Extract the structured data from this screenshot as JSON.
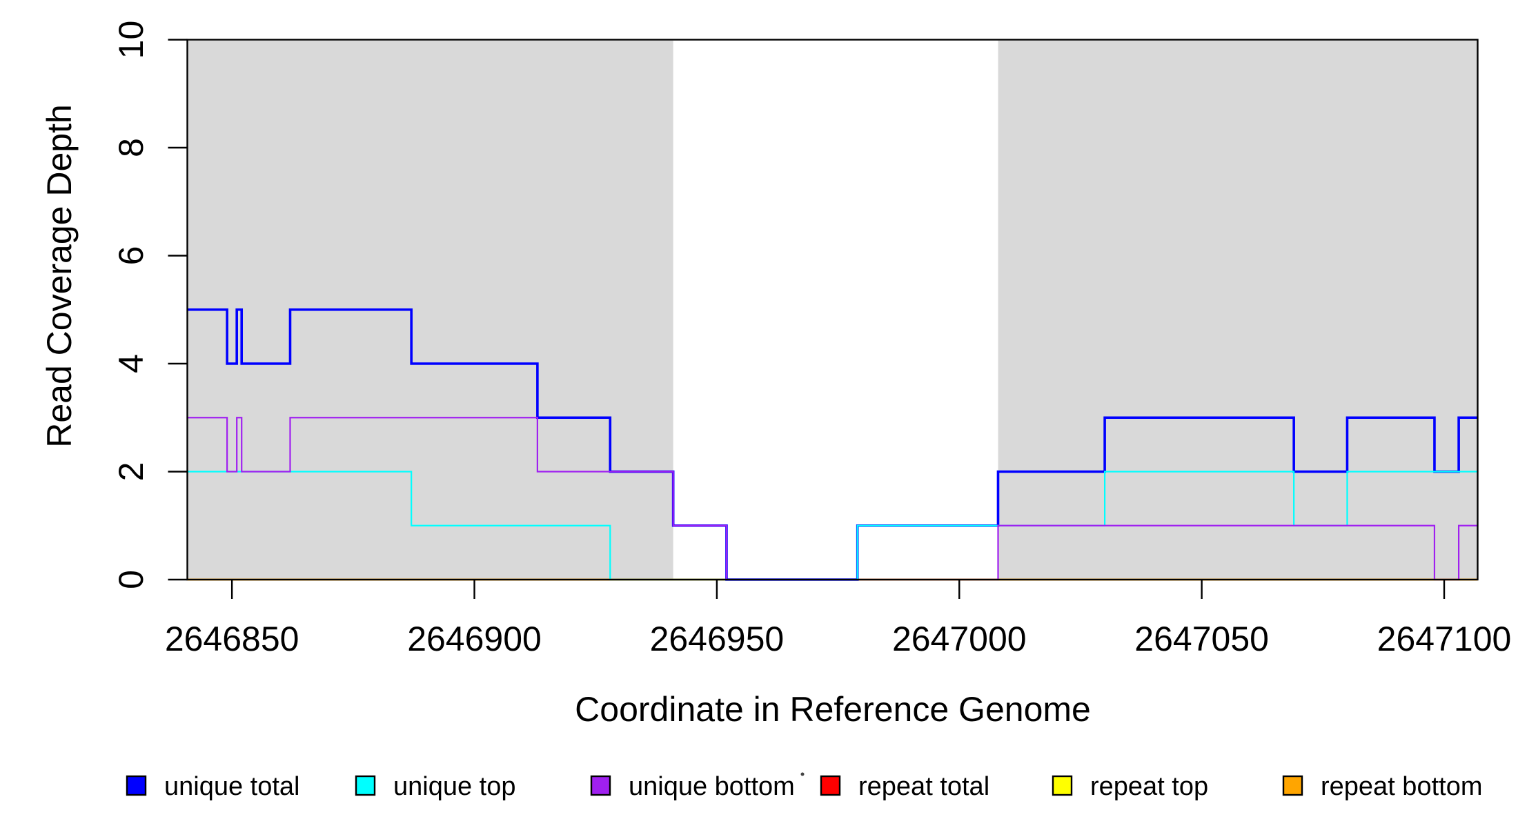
{
  "chart_data": {
    "type": "line",
    "step": true,
    "title": "",
    "xlabel": "Coordinate in Reference Genome",
    "ylabel": "Read Coverage Depth",
    "xlim": [
      2646840.8,
      2647106.9
    ],
    "ylim": [
      0,
      10
    ],
    "xticks": [
      2646850,
      2646900,
      2646950,
      2647000,
      2647050,
      2647100
    ],
    "yticks": [
      0,
      2,
      4,
      6,
      8,
      10
    ],
    "grid": false,
    "legend_position": "bottom",
    "shaded_regions": {
      "color": "#D9D9D9",
      "regions": [
        [
          2646840.8,
          2646941
        ],
        [
          2647008,
          2647106.9
        ]
      ]
    },
    "breakpoints": [
      2646840.8,
      2646849,
      2646851,
      2646852,
      2646862,
      2646887,
      2646913,
      2646928,
      2646941,
      2646952,
      2646979,
      2647008,
      2647030,
      2647069,
      2647080,
      2647098,
      2647103,
      2647106.9
    ],
    "series": [
      {
        "name": "unique total",
        "color": "#0000FF",
        "line_width": 3.6,
        "values": [
          5,
          4,
          5,
          4,
          5,
          4,
          3,
          2,
          1,
          0,
          1,
          2,
          3,
          2,
          3,
          2,
          3
        ]
      },
      {
        "name": "unique top",
        "color": "#00FFFF",
        "line_width": 2.2,
        "values": [
          2,
          2,
          2,
          2,
          2,
          1,
          1,
          0,
          0,
          0,
          1,
          1,
          2,
          1,
          2,
          2,
          2
        ]
      },
      {
        "name": "unique bottom",
        "color": "#A020F0",
        "line_width": 2.2,
        "values": [
          3,
          2,
          3,
          2,
          3,
          3,
          2,
          2,
          1,
          0,
          0,
          1,
          1,
          1,
          1,
          0,
          1
        ]
      },
      {
        "name": "repeat total",
        "color": "#FF0000",
        "line_width": 2.2,
        "values": [
          0,
          0,
          0,
          0,
          0,
          0,
          0,
          0,
          0,
          0,
          0,
          0,
          0,
          0,
          0,
          0,
          0
        ]
      },
      {
        "name": "repeat top",
        "color": "#FFFF00",
        "line_width": 2.2,
        "values": [
          0,
          0,
          0,
          0,
          0,
          0,
          0,
          0,
          0,
          0,
          0,
          0,
          0,
          0,
          0,
          0,
          0
        ]
      },
      {
        "name": "repeat bottom",
        "color": "#FFA500",
        "line_width": 2.8,
        "values": [
          0,
          0,
          0,
          0,
          0,
          0,
          0,
          0,
          0,
          0,
          0,
          0,
          0,
          0,
          0,
          0,
          0
        ]
      }
    ],
    "draw_order": [
      "repeat total",
      "repeat top",
      "repeat bottom",
      "unique total",
      "unique top",
      "unique bottom"
    ]
  },
  "legend": {
    "items": [
      {
        "label": "unique total",
        "color": "#0000FF"
      },
      {
        "label": "unique top",
        "color": "#00FFFF"
      },
      {
        "label": "unique bottom",
        "color": "#A020F0"
      },
      {
        "label": "repeat total",
        "color": "#FF0000"
      },
      {
        "label": "repeat top",
        "color": "#FFFF00"
      },
      {
        "label": "repeat bottom",
        "color": "#FFA500"
      }
    ]
  },
  "annotations": {
    "stray_dot": "small dark speck artifact left of repeat total legend swatch"
  }
}
